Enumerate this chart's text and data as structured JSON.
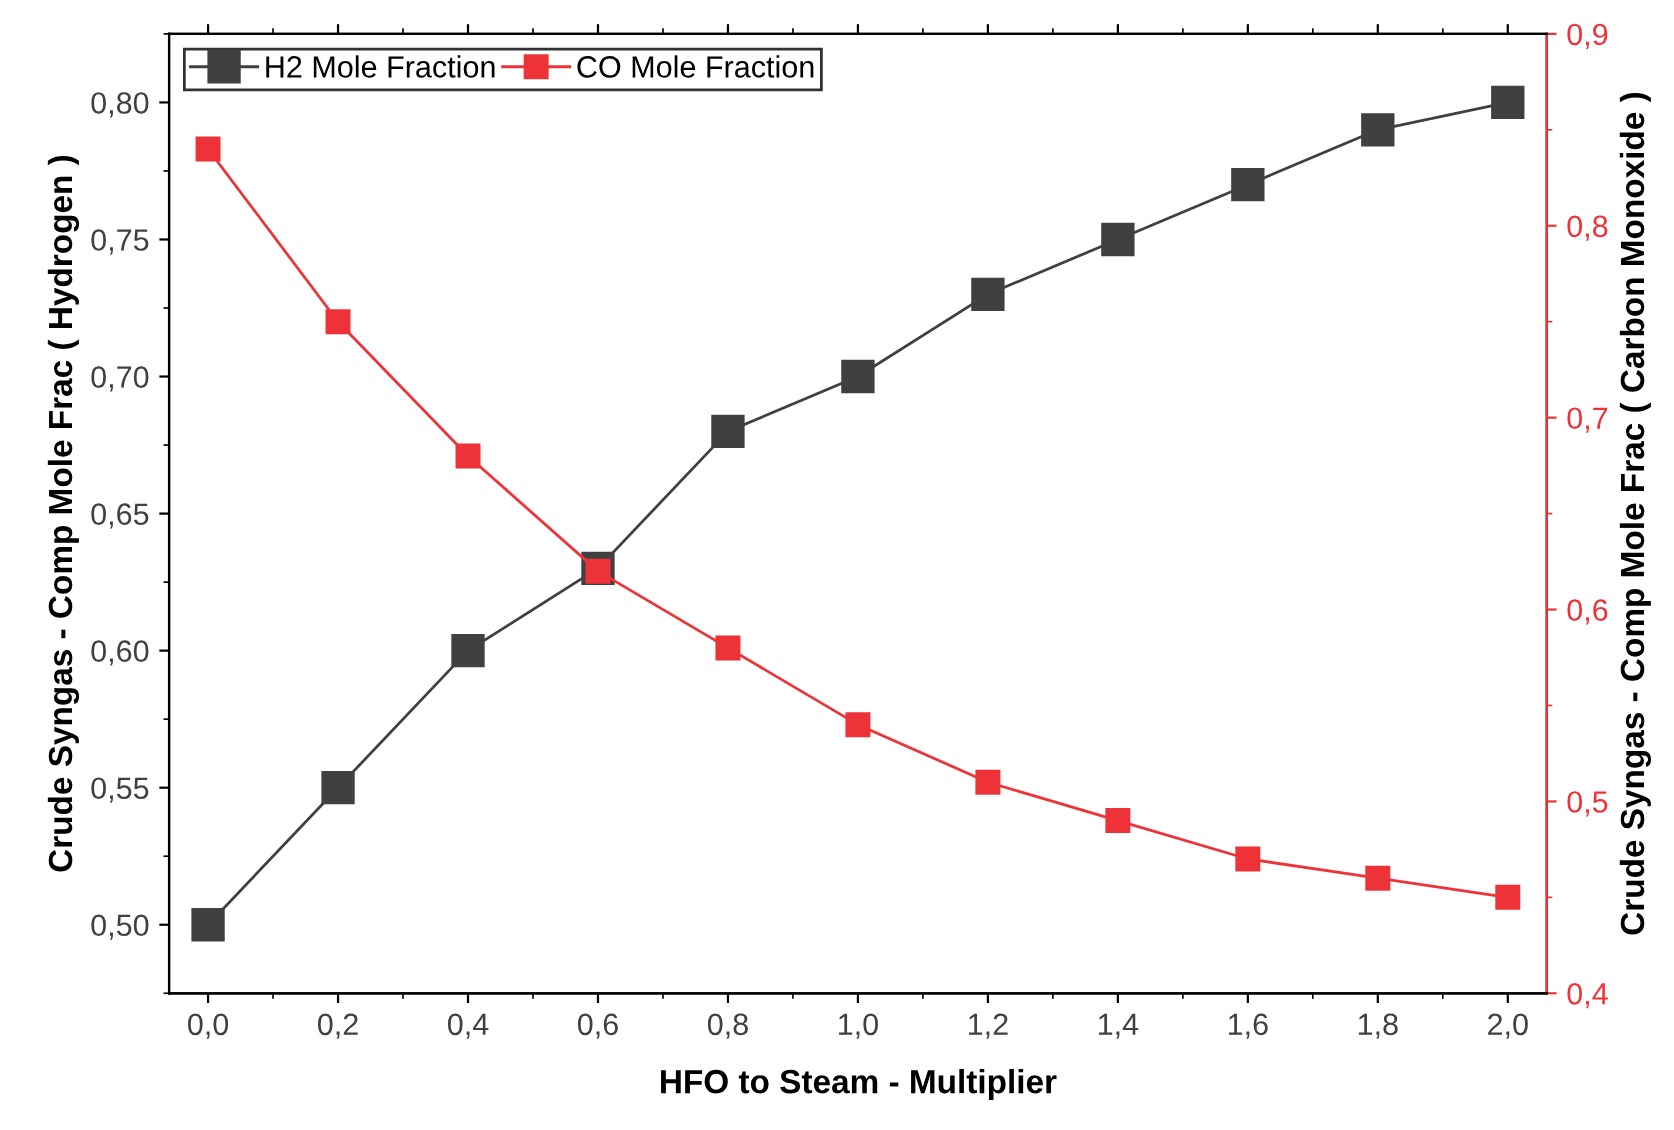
{
  "chart_data": {
    "type": "line",
    "xlabel": "HFO to Steam - Multiplier",
    "ylabel": "Crude Syngas - Comp Mole Frac ( Hydrogen )",
    "y2label": "Crude Syngas - Comp Mole Frac ( Carbon Monoxide )",
    "x": [
      0.0,
      0.2,
      0.4,
      0.6,
      0.8,
      1.0,
      1.2,
      1.4,
      1.6,
      1.8,
      2.0
    ],
    "series": [
      {
        "name": "H2 Mole Fraction",
        "color": "#404040",
        "values": [
          0.5,
          0.55,
          0.6,
          0.63,
          0.68,
          0.7,
          0.73,
          0.75,
          0.77,
          0.79,
          0.8
        ]
      },
      {
        "name": "CO Mole Fraction",
        "color": "#ee3338",
        "axis": "y2",
        "values": [
          0.84,
          0.75,
          0.68,
          0.62,
          0.58,
          0.54,
          0.51,
          0.49,
          0.47,
          0.46,
          0.45
        ]
      }
    ],
    "xlim": [
      -0.06,
      2.06
    ],
    "xticks": [
      {
        "value": 0.0,
        "label": "0,0"
      },
      {
        "value": 0.2,
        "label": "0,2"
      },
      {
        "value": 0.4,
        "label": "0,4"
      },
      {
        "value": 0.6,
        "label": "0,6"
      },
      {
        "value": 0.8,
        "label": "0,8"
      },
      {
        "value": 1.0,
        "label": "1,0"
      },
      {
        "value": 1.2,
        "label": "1,2"
      },
      {
        "value": 1.4,
        "label": "1,4"
      },
      {
        "value": 1.6,
        "label": "1,6"
      },
      {
        "value": 1.8,
        "label": "1,8"
      },
      {
        "value": 2.0,
        "label": "2,0"
      }
    ],
    "ylim": [
      0.475,
      0.825
    ],
    "yticks": [
      {
        "value": 0.5,
        "label": "0,50"
      },
      {
        "value": 0.55,
        "label": "0,55"
      },
      {
        "value": 0.6,
        "label": "0,60"
      },
      {
        "value": 0.65,
        "label": "0,65"
      },
      {
        "value": 0.7,
        "label": "0,70"
      },
      {
        "value": 0.75,
        "label": "0,75"
      },
      {
        "value": 0.8,
        "label": "0,80"
      }
    ],
    "y2lim": [
      0.4,
      0.9
    ],
    "y2ticks": [
      {
        "value": 0.4,
        "label": "0,4"
      },
      {
        "value": 0.5,
        "label": "0,5"
      },
      {
        "value": 0.6,
        "label": "0,6"
      },
      {
        "value": 0.7,
        "label": "0,7"
      },
      {
        "value": 0.8,
        "label": "0,8"
      },
      {
        "value": 0.9,
        "label": "0,9"
      }
    ],
    "marker": "square",
    "line_style": "solid",
    "grid": false,
    "legend": "top left"
  }
}
